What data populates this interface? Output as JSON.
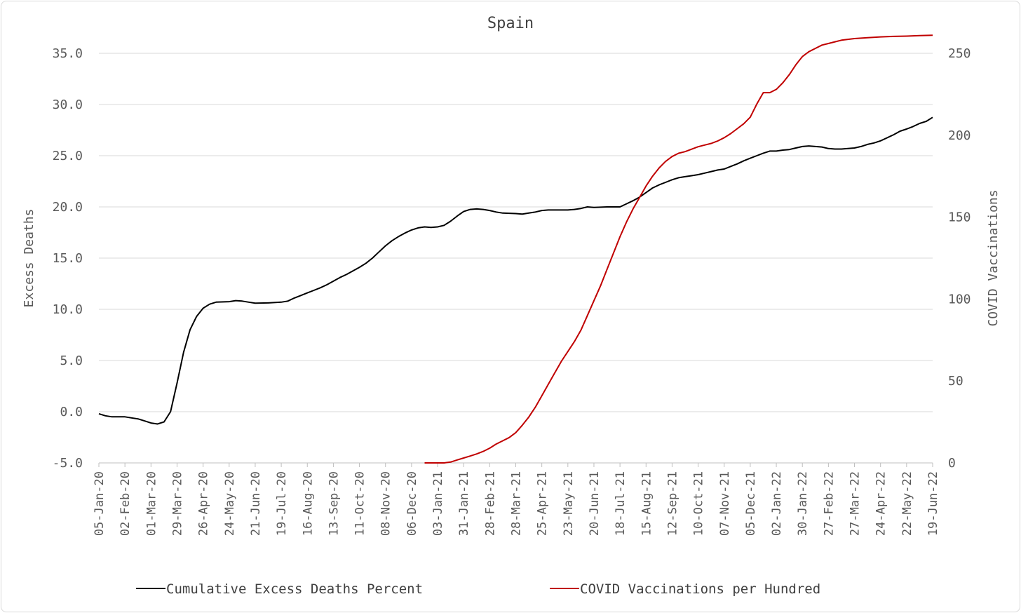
{
  "chart_data": {
    "type": "line",
    "title": "Spain",
    "ylabel": "Excess Deaths",
    "y2label": "COVID Vaccinations",
    "ylim": [
      -5,
      35
    ],
    "y2lim": [
      0,
      250
    ],
    "yticks": [
      "35.0",
      "30.0",
      "25.0",
      "20.0",
      "15.0",
      "10.0",
      "5.0",
      "0.0",
      "-5.0"
    ],
    "y2ticks": [
      "250",
      "200",
      "150",
      "100",
      "50",
      "0"
    ],
    "grid": true,
    "legend_position": "bottom",
    "x_start": "2020-01-05",
    "x_end": "2022-06-19",
    "x_tick_labels": [
      "05-Jan-20",
      "02-Feb-20",
      "01-Mar-20",
      "29-Mar-20",
      "26-Apr-20",
      "24-May-20",
      "21-Jun-20",
      "19-Jul-20",
      "16-Aug-20",
      "13-Sep-20",
      "11-Oct-20",
      "08-Nov-20",
      "06-Dec-20",
      "03-Jan-21",
      "31-Jan-21",
      "28-Feb-21",
      "28-Mar-21",
      "25-Apr-21",
      "23-May-21",
      "20-Jun-21",
      "18-Jul-21",
      "15-Aug-21",
      "12-Sep-21",
      "10-Oct-21",
      "07-Nov-21",
      "05-Dec-21",
      "02-Jan-22",
      "30-Jan-22",
      "27-Feb-22",
      "27-Mar-22",
      "24-Apr-22",
      "22-May-22",
      "19-Jun-22"
    ],
    "series": [
      {
        "name": "Cumulative Excess Deaths Percent",
        "axis": "left",
        "color": "#000000",
        "points": [
          [
            "2020-01-05",
            -0.2
          ],
          [
            "2020-01-12",
            -0.4
          ],
          [
            "2020-01-19",
            -0.5
          ],
          [
            "2020-01-26",
            -0.5
          ],
          [
            "2020-02-02",
            -0.5
          ],
          [
            "2020-02-09",
            -0.6
          ],
          [
            "2020-02-16",
            -0.7
          ],
          [
            "2020-02-23",
            -0.9
          ],
          [
            "2020-03-01",
            -1.1
          ],
          [
            "2020-03-08",
            -1.2
          ],
          [
            "2020-03-15",
            -1.0
          ],
          [
            "2020-03-22",
            0.0
          ],
          [
            "2020-03-29",
            2.8
          ],
          [
            "2020-04-05",
            5.8
          ],
          [
            "2020-04-12",
            8.0
          ],
          [
            "2020-04-19",
            9.3
          ],
          [
            "2020-04-26",
            10.1
          ],
          [
            "2020-05-03",
            10.5
          ],
          [
            "2020-05-10",
            10.7
          ],
          [
            "2020-05-24",
            10.75
          ],
          [
            "2020-05-31",
            10.85
          ],
          [
            "2020-06-07",
            10.8
          ],
          [
            "2020-06-14",
            10.7
          ],
          [
            "2020-06-21",
            10.6
          ],
          [
            "2020-07-05",
            10.62
          ],
          [
            "2020-07-19",
            10.7
          ],
          [
            "2020-07-26",
            10.8
          ],
          [
            "2020-08-02",
            11.1
          ],
          [
            "2020-08-09",
            11.35
          ],
          [
            "2020-08-16",
            11.6
          ],
          [
            "2020-08-23",
            11.85
          ],
          [
            "2020-08-30",
            12.1
          ],
          [
            "2020-09-06",
            12.4
          ],
          [
            "2020-09-13",
            12.75
          ],
          [
            "2020-09-20",
            13.1
          ],
          [
            "2020-09-27",
            13.4
          ],
          [
            "2020-10-04",
            13.75
          ],
          [
            "2020-10-11",
            14.1
          ],
          [
            "2020-10-18",
            14.5
          ],
          [
            "2020-10-25",
            15.0
          ],
          [
            "2020-11-01",
            15.6
          ],
          [
            "2020-11-08",
            16.2
          ],
          [
            "2020-11-15",
            16.7
          ],
          [
            "2020-11-22",
            17.1
          ],
          [
            "2020-11-29",
            17.45
          ],
          [
            "2020-12-06",
            17.75
          ],
          [
            "2020-12-13",
            17.95
          ],
          [
            "2020-12-20",
            18.05
          ],
          [
            "2020-12-27",
            18.0
          ],
          [
            "2021-01-03",
            18.05
          ],
          [
            "2021-01-10",
            18.2
          ],
          [
            "2021-01-17",
            18.6
          ],
          [
            "2021-01-24",
            19.1
          ],
          [
            "2021-01-31",
            19.55
          ],
          [
            "2021-02-07",
            19.75
          ],
          [
            "2021-02-14",
            19.8
          ],
          [
            "2021-02-21",
            19.75
          ],
          [
            "2021-02-28",
            19.65
          ],
          [
            "2021-03-07",
            19.5
          ],
          [
            "2021-03-14",
            19.4
          ],
          [
            "2021-03-28",
            19.35
          ],
          [
            "2021-04-04",
            19.3
          ],
          [
            "2021-04-11",
            19.4
          ],
          [
            "2021-04-18",
            19.5
          ],
          [
            "2021-04-25",
            19.65
          ],
          [
            "2021-05-02",
            19.7
          ],
          [
            "2021-05-23",
            19.7
          ],
          [
            "2021-05-30",
            19.75
          ],
          [
            "2021-06-06",
            19.85
          ],
          [
            "2021-06-13",
            20.0
          ],
          [
            "2021-06-20",
            19.95
          ],
          [
            "2021-07-04",
            20.0
          ],
          [
            "2021-07-18",
            20.0
          ],
          [
            "2021-07-25",
            20.3
          ],
          [
            "2021-08-01",
            20.6
          ],
          [
            "2021-08-08",
            20.95
          ],
          [
            "2021-08-15",
            21.4
          ],
          [
            "2021-08-22",
            21.85
          ],
          [
            "2021-08-29",
            22.15
          ],
          [
            "2021-09-05",
            22.4
          ],
          [
            "2021-09-12",
            22.65
          ],
          [
            "2021-09-19",
            22.85
          ],
          [
            "2021-09-26",
            22.95
          ],
          [
            "2021-10-03",
            23.05
          ],
          [
            "2021-10-10",
            23.15
          ],
          [
            "2021-10-17",
            23.3
          ],
          [
            "2021-10-24",
            23.45
          ],
          [
            "2021-10-31",
            23.6
          ],
          [
            "2021-11-07",
            23.7
          ],
          [
            "2021-11-14",
            23.95
          ],
          [
            "2021-11-21",
            24.2
          ],
          [
            "2021-11-28",
            24.5
          ],
          [
            "2021-12-05",
            24.75
          ],
          [
            "2021-12-12",
            25.0
          ],
          [
            "2021-12-19",
            25.25
          ],
          [
            "2021-12-26",
            25.45
          ],
          [
            "2022-01-02",
            25.45
          ],
          [
            "2022-01-09",
            25.55
          ],
          [
            "2022-01-16",
            25.6
          ],
          [
            "2022-01-23",
            25.75
          ],
          [
            "2022-01-30",
            25.9
          ],
          [
            "2022-02-06",
            25.95
          ],
          [
            "2022-02-13",
            25.9
          ],
          [
            "2022-02-20",
            25.85
          ],
          [
            "2022-02-27",
            25.7
          ],
          [
            "2022-03-06",
            25.65
          ],
          [
            "2022-03-13",
            25.65
          ],
          [
            "2022-03-20",
            25.7
          ],
          [
            "2022-03-27",
            25.75
          ],
          [
            "2022-04-03",
            25.9
          ],
          [
            "2022-04-10",
            26.1
          ],
          [
            "2022-04-17",
            26.25
          ],
          [
            "2022-04-24",
            26.45
          ],
          [
            "2022-05-01",
            26.75
          ],
          [
            "2022-05-08",
            27.05
          ],
          [
            "2022-05-15",
            27.4
          ],
          [
            "2022-05-22",
            27.6
          ],
          [
            "2022-05-29",
            27.85
          ],
          [
            "2022-06-05",
            28.15
          ],
          [
            "2022-06-12",
            28.35
          ],
          [
            "2022-06-19",
            28.75
          ]
        ]
      },
      {
        "name": "COVID Vaccinations per Hundred",
        "axis": "right",
        "color": "#c00000",
        "points": [
          [
            "2020-12-20",
            0
          ],
          [
            "2020-12-27",
            0
          ],
          [
            "2021-01-03",
            0
          ],
          [
            "2021-01-10",
            0
          ],
          [
            "2021-01-17",
            0.5
          ],
          [
            "2021-01-24",
            1.8
          ],
          [
            "2021-01-31",
            3.0
          ],
          [
            "2021-02-07",
            4.2
          ],
          [
            "2021-02-14",
            5.5
          ],
          [
            "2021-02-21",
            7.0
          ],
          [
            "2021-02-28",
            9.0
          ],
          [
            "2021-03-07",
            11.5
          ],
          [
            "2021-03-14",
            13.5
          ],
          [
            "2021-03-21",
            15.5
          ],
          [
            "2021-03-28",
            18.5
          ],
          [
            "2021-04-04",
            23
          ],
          [
            "2021-04-11",
            28
          ],
          [
            "2021-04-18",
            34
          ],
          [
            "2021-04-25",
            41
          ],
          [
            "2021-05-02",
            48
          ],
          [
            "2021-05-09",
            55
          ],
          [
            "2021-05-16",
            62
          ],
          [
            "2021-05-23",
            68
          ],
          [
            "2021-05-30",
            74
          ],
          [
            "2021-06-06",
            81
          ],
          [
            "2021-06-13",
            90
          ],
          [
            "2021-06-20",
            99
          ],
          [
            "2021-06-27",
            108
          ],
          [
            "2021-07-04",
            118
          ],
          [
            "2021-07-11",
            128
          ],
          [
            "2021-07-18",
            138
          ],
          [
            "2021-07-25",
            147
          ],
          [
            "2021-08-01",
            155
          ],
          [
            "2021-08-08",
            162
          ],
          [
            "2021-08-15",
            169
          ],
          [
            "2021-08-22",
            175
          ],
          [
            "2021-08-29",
            180
          ],
          [
            "2021-09-05",
            184
          ],
          [
            "2021-09-12",
            187
          ],
          [
            "2021-09-19",
            189
          ],
          [
            "2021-09-26",
            190
          ],
          [
            "2021-10-03",
            191.5
          ],
          [
            "2021-10-10",
            193
          ],
          [
            "2021-10-17",
            194
          ],
          [
            "2021-10-24",
            195
          ],
          [
            "2021-10-31",
            196.5
          ],
          [
            "2021-11-07",
            198.5
          ],
          [
            "2021-11-14",
            201
          ],
          [
            "2021-11-21",
            204
          ],
          [
            "2021-11-28",
            207
          ],
          [
            "2021-12-05",
            211
          ],
          [
            "2021-12-12",
            219
          ],
          [
            "2021-12-19",
            226
          ],
          [
            "2021-12-26",
            226
          ],
          [
            "2022-01-02",
            228
          ],
          [
            "2022-01-09",
            232
          ],
          [
            "2022-01-16",
            237
          ],
          [
            "2022-01-23",
            243
          ],
          [
            "2022-01-30",
            248
          ],
          [
            "2022-02-06",
            251
          ],
          [
            "2022-02-13",
            253
          ],
          [
            "2022-02-20",
            255
          ],
          [
            "2022-02-27",
            256
          ],
          [
            "2022-03-06",
            257
          ],
          [
            "2022-03-13",
            258
          ],
          [
            "2022-03-20",
            258.5
          ],
          [
            "2022-03-27",
            259
          ],
          [
            "2022-04-10",
            259.5
          ],
          [
            "2022-04-24",
            260
          ],
          [
            "2022-05-08",
            260.3
          ],
          [
            "2022-05-22",
            260.5
          ],
          [
            "2022-06-05",
            260.8
          ],
          [
            "2022-06-19",
            261
          ]
        ]
      }
    ]
  }
}
